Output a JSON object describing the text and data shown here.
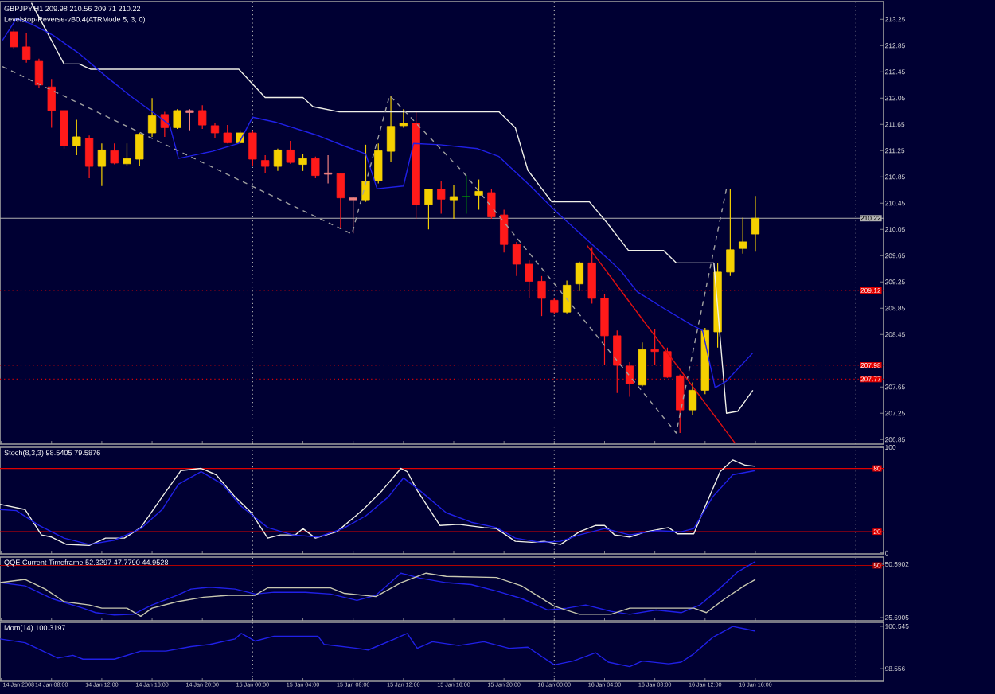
{
  "chart_data": [
    {
      "type": "candlestick",
      "title": "GBPJPY,H1  209.98 210.56 209.71 210.22",
      "subtitle": "Levelstop-Reverse-vB0.4(ATRMode 5, 3, 0)",
      "x": [
        "2008-01-14T05:00",
        "2008-01-14T06:00",
        "2008-01-14T07:00",
        "2008-01-14T08:00",
        "2008-01-14T09:00",
        "2008-01-14T10:00",
        "2008-01-14T11:00",
        "2008-01-14T12:00",
        "2008-01-14T13:00",
        "2008-01-14T14:00",
        "2008-01-14T15:00",
        "2008-01-14T16:00",
        "2008-01-14T17:00",
        "2008-01-14T18:00",
        "2008-01-14T19:00",
        "2008-01-14T20:00",
        "2008-01-14T21:00",
        "2008-01-14T22:00",
        "2008-01-14T23:00",
        "2008-01-15T00:00",
        "2008-01-15T01:00",
        "2008-01-15T02:00",
        "2008-01-15T03:00",
        "2008-01-15T04:00",
        "2008-01-15T05:00",
        "2008-01-15T06:00",
        "2008-01-15T07:00",
        "2008-01-15T08:00",
        "2008-01-15T09:00",
        "2008-01-15T10:00",
        "2008-01-15T11:00",
        "2008-01-15T12:00",
        "2008-01-15T13:00",
        "2008-01-15T14:00",
        "2008-01-15T15:00",
        "2008-01-15T16:00",
        "2008-01-15T17:00",
        "2008-01-15T18:00",
        "2008-01-15T19:00",
        "2008-01-15T20:00",
        "2008-01-15T21:00",
        "2008-01-15T22:00",
        "2008-01-15T23:00",
        "2008-01-16T00:00",
        "2008-01-16T01:00",
        "2008-01-16T02:00",
        "2008-01-16T03:00",
        "2008-01-16T04:00",
        "2008-01-16T05:00",
        "2008-01-16T06:00",
        "2008-01-16T07:00",
        "2008-01-16T08:00",
        "2008-01-16T09:00",
        "2008-01-16T10:00",
        "2008-01-16T11:00",
        "2008-01-16T12:00",
        "2008-01-16T13:00",
        "2008-01-16T14:00",
        "2008-01-16T15:00",
        "2008-01-16T16:00"
      ],
      "ohlc": [
        [
          213.06,
          213.1,
          212.8,
          212.83
        ],
        [
          212.83,
          213.04,
          212.59,
          212.64
        ],
        [
          212.61,
          212.65,
          212.21,
          212.25
        ],
        [
          212.22,
          212.34,
          211.6,
          211.86
        ],
        [
          211.86,
          211.86,
          211.28,
          211.32
        ],
        [
          211.32,
          211.72,
          211.18,
          211.46
        ],
        [
          211.44,
          211.48,
          210.83,
          211.01
        ],
        [
          211.01,
          211.36,
          210.71,
          211.26
        ],
        [
          211.25,
          211.36,
          211.04,
          211.06
        ],
        [
          211.05,
          211.36,
          211.02,
          211.13
        ],
        [
          211.12,
          211.52,
          211.02,
          211.5
        ],
        [
          211.52,
          212.05,
          211.46,
          211.78
        ],
        [
          211.8,
          211.84,
          211.46,
          211.6
        ],
        [
          211.6,
          211.88,
          211.58,
          211.86
        ],
        [
          211.86,
          211.88,
          211.56,
          211.83
        ],
        [
          211.86,
          211.94,
          211.58,
          211.64
        ],
        [
          211.63,
          211.67,
          211.44,
          211.52
        ],
        [
          211.52,
          211.64,
          211.36,
          211.37
        ],
        [
          211.37,
          211.56,
          211.36,
          211.52
        ],
        [
          211.52,
          211.56,
          211.01,
          211.12
        ],
        [
          211.1,
          211.18,
          210.91,
          211.01
        ],
        [
          211.01,
          211.28,
          210.94,
          211.26
        ],
        [
          211.26,
          211.4,
          211.05,
          211.07
        ],
        [
          211.04,
          211.2,
          210.94,
          211.13
        ],
        [
          211.13,
          211.16,
          210.83,
          210.87
        ],
        [
          210.91,
          211.18,
          210.75,
          210.89
        ],
        [
          210.9,
          210.91,
          210.07,
          210.53
        ],
        [
          210.53,
          210.55,
          209.99,
          210.5
        ],
        [
          210.5,
          211.34,
          210.47,
          210.78
        ],
        [
          210.79,
          211.36,
          210.75,
          211.25
        ],
        [
          211.24,
          212.09,
          211.08,
          211.62
        ],
        [
          211.63,
          211.88,
          211.6,
          211.67
        ],
        [
          211.67,
          211.84,
          210.21,
          210.43
        ],
        [
          210.43,
          210.67,
          210.05,
          210.66
        ],
        [
          210.66,
          210.79,
          210.29,
          210.51
        ],
        [
          210.5,
          210.73,
          210.21,
          210.55
        ],
        [
          210.55,
          210.87,
          210.29,
          210.55
        ],
        [
          210.57,
          210.81,
          210.35,
          210.63
        ],
        [
          210.61,
          210.67,
          210.21,
          210.24
        ],
        [
          210.27,
          210.35,
          209.7,
          209.82
        ],
        [
          209.82,
          209.86,
          209.34,
          209.52
        ],
        [
          209.52,
          209.58,
          209.01,
          209.26
        ],
        [
          209.26,
          209.34,
          208.73,
          209.0
        ],
        [
          208.97,
          209.0,
          208.76,
          208.79
        ],
        [
          208.79,
          209.27,
          208.77,
          209.2
        ],
        [
          209.22,
          209.56,
          209.11,
          209.54
        ],
        [
          209.54,
          209.78,
          208.92,
          209.0
        ],
        [
          209.0,
          209.06,
          207.98,
          208.43
        ],
        [
          208.43,
          208.51,
          207.56,
          207.98
        ],
        [
          207.97,
          208.03,
          207.5,
          207.7
        ],
        [
          207.68,
          208.33,
          207.66,
          208.22
        ],
        [
          208.22,
          208.53,
          207.98,
          208.19
        ],
        [
          208.19,
          208.25,
          207.79,
          207.8
        ],
        [
          207.82,
          207.84,
          206.95,
          207.3
        ],
        [
          207.3,
          207.72,
          207.22,
          207.6
        ],
        [
          207.6,
          208.55,
          207.54,
          208.51
        ],
        [
          208.49,
          209.54,
          208.25,
          209.4
        ],
        [
          209.4,
          210.67,
          209.34,
          209.74
        ],
        [
          209.76,
          210.23,
          209.68,
          209.86
        ],
        [
          209.98,
          210.56,
          209.71,
          210.22
        ]
      ],
      "colors": [
        "#ff1a1a",
        "#ff1a1a",
        "#ff1a1a",
        "#ff1a1a",
        "#ff1a1a",
        "#f5d000",
        "#ff1a1a",
        "#f5d000",
        "#ff1a1a",
        "#f5d000",
        "#f5d000",
        "#f5d000",
        "#ff1a1a",
        "#f5d000",
        "#f08080",
        "#ff1a1a",
        "#ff1a1a",
        "#ff1a1a",
        "#f5d000",
        "#ff1a1a",
        "#ff1a1a",
        "#f5d000",
        "#ff1a1a",
        "#f5d000",
        "#ff1a1a",
        "#f08080",
        "#ff1a1a",
        "#f08080",
        "#f5d000",
        "#f5d000",
        "#f5d000",
        "#f5d000",
        "#ff1a1a",
        "#f5d000",
        "#ff1a1a",
        "#f5d000",
        "#00a000",
        "#f5d000",
        "#ff1a1a",
        "#ff1a1a",
        "#ff1a1a",
        "#ff1a1a",
        "#ff1a1a",
        "#ff1a1a",
        "#f5d000",
        "#f5d000",
        "#ff1a1a",
        "#ff1a1a",
        "#ff1a1a",
        "#ff1a1a",
        "#f5d000",
        "#ff1a1a",
        "#ff1a1a",
        "#ff1a1a",
        "#f5d000",
        "#f5d000",
        "#f5d000",
        "#f5d000",
        "#f5d000",
        "#f5d000"
      ],
      "series": [
        {
          "type": "line",
          "color": "#f0f0e8",
          "x": [
            "2008-01-14T06:24",
            "2008-01-14T09:00",
            "2008-01-14T10:12",
            "2008-01-14T11:06",
            "2008-01-14T22:54",
            "2008-01-15T01:00",
            "2008-01-15T04:00",
            "2008-01-15T04:48",
            "2008-01-15T06:54",
            "2008-01-15T19:36",
            "2008-01-15T20:54",
            "2008-01-15T21:54",
            "2008-01-15T23:48",
            "2008-01-16T02:48",
            "2008-01-16T04:12",
            "2008-01-16T05:54",
            "2008-01-16T08:42",
            "2008-01-16T09:42",
            "2008-01-16T12:42",
            "2008-01-16T13:42",
            "2008-01-16T14:36",
            "2008-01-16T15:48"
          ],
          "values": [
            213.5,
            212.57,
            212.57,
            212.49,
            212.49,
            212.06,
            212.06,
            211.92,
            211.84,
            211.84,
            211.6,
            210.95,
            210.47,
            210.47,
            210.15,
            209.73,
            209.73,
            209.54,
            209.54,
            207.25,
            207.28,
            207.6
          ]
        },
        {
          "type": "line",
          "color": "#2020e8",
          "x": [
            "2008-01-14T04:06",
            "2008-01-14T05:12",
            "2008-01-14T06:24",
            "2008-01-14T08:06",
            "2008-01-14T10:12",
            "2008-01-14T12:24",
            "2008-01-14T14:30",
            "2008-01-14T16:36",
            "2008-01-14T17:24",
            "2008-01-14T18:06",
            "2008-01-14T20:48",
            "2008-01-14T22:54",
            "2008-01-15T00:00",
            "2008-01-15T01:54",
            "2008-01-15T05:12",
            "2008-01-15T07:18",
            "2008-01-15T09:00",
            "2008-01-15T09:54",
            "2008-01-15T12:00",
            "2008-01-15T12:48",
            "2008-01-15T14:54",
            "2008-01-15T17:54",
            "2008-01-15T19:36",
            "2008-01-15T22:06",
            "2008-01-16T00:12",
            "2008-01-16T02:48",
            "2008-01-16T05:18",
            "2008-01-16T06:36",
            "2008-01-16T08:42",
            "2008-01-16T10:48",
            "2008-01-16T11:48",
            "2008-01-16T12:48",
            "2008-01-16T13:42",
            "2008-01-16T15:48"
          ],
          "values": [
            212.93,
            213.26,
            213.18,
            213.01,
            212.73,
            212.37,
            212.05,
            211.76,
            211.64,
            211.13,
            211.24,
            211.36,
            211.76,
            211.68,
            211.48,
            211.32,
            211.2,
            210.67,
            210.71,
            211.36,
            211.34,
            211.28,
            211.16,
            210.71,
            210.31,
            209.86,
            209.42,
            209.1,
            208.85,
            208.61,
            208.51,
            207.64,
            207.74,
            208.17
          ]
        },
        {
          "type": "line",
          "color": "#a0a0a0",
          "line_style": "dashed",
          "x": [
            "2008-01-14T04:06",
            "2008-01-15T07:54",
            "2008-01-15T10:54",
            "2008-01-15T16:48",
            "2008-01-16T09:42",
            "2008-01-16T13:42"
          ],
          "values": [
            212.53,
            209.98,
            212.09,
            210.91,
            206.95,
            210.67
          ]
        },
        {
          "type": "line",
          "color": "#e01010",
          "x": [
            "2008-01-16T02:36",
            "2008-01-16T14:24"
          ],
          "values": [
            209.81,
            206.79
          ]
        }
      ],
      "xlim": [
        "2008-01-14T03:54",
        "2008-01-17T02:12"
      ],
      "ylim": [
        206.78,
        213.52
      ],
      "xticks": [
        "2008-01-14T04:00",
        "2008-01-14T08:00",
        "2008-01-14T12:00",
        "2008-01-14T16:00",
        "2008-01-14T20:00",
        "2008-01-15T00:00",
        "2008-01-15T04:00",
        "2008-01-15T08:00",
        "2008-01-15T12:00",
        "2008-01-15T16:00",
        "2008-01-15T20:00",
        "2008-01-16T00:00",
        "2008-01-16T04:00",
        "2008-01-16T08:00",
        "2008-01-16T12:00",
        "2008-01-16T16:00"
      ],
      "yticks": [
        206.85,
        207.25,
        207.65,
        208.45,
        208.85,
        209.25,
        209.65,
        210.05,
        210.45,
        210.85,
        211.25,
        211.65,
        212.05,
        212.45,
        212.85,
        213.25
      ],
      "tick_labels": "y",
      "ref_lines": [
        {
          "axis": "y",
          "value": 210.22,
          "label": "210.22",
          "color": "#b0b0b0"
        },
        {
          "axis": "y",
          "value": 209.12,
          "label": "209.12",
          "color": "#e00000",
          "line_style": "dotted"
        },
        {
          "axis": "y",
          "value": 207.98,
          "label": "207.98",
          "color": "#e00000",
          "line_style": "dotted"
        },
        {
          "axis": "y",
          "value": 207.77,
          "label": "207.77",
          "color": "#e00000",
          "line_style": "dotted"
        },
        {
          "axis": "x",
          "value": "2008-01-15T00:00",
          "color": "#b0b0b0",
          "line_style": "dotted"
        },
        {
          "axis": "x",
          "value": "2008-01-16T00:00",
          "color": "#b0b0b0",
          "line_style": "dotted"
        },
        {
          "axis": "x",
          "value": "2008-01-17T00:00",
          "color": "#b0b0b0",
          "line_style": "dotted"
        }
      ]
    },
    {
      "type": "line",
      "title": "Stoch(8,3,3) 98.5405 79.5876",
      "series": [
        {
          "color": "#f0f0e8",
          "x": [
            "2008-01-14T03:54",
            "2008-01-14T05:54",
            "2008-01-14T07:12",
            "2008-01-14T08:00",
            "2008-01-14T09:12",
            "2008-01-14T11:00",
            "2008-01-14T12:18",
            "2008-01-14T13:48",
            "2008-01-14T15:06",
            "2008-01-14T16:48",
            "2008-01-14T18:18",
            "2008-01-14T19:54",
            "2008-01-14T21:06",
            "2008-01-14T22:36",
            "2008-01-14T23:54",
            "2008-01-15T01:12",
            "2008-01-15T02:12",
            "2008-01-15T03:24",
            "2008-01-15T04:00",
            "2008-01-15T05:00",
            "2008-01-15T06:42",
            "2008-01-15T08:48",
            "2008-01-15T10:18",
            "2008-01-15T11:48",
            "2008-01-15T12:18",
            "2008-01-15T13:06",
            "2008-01-15T14:54",
            "2008-01-15T16:24",
            "2008-01-15T18:24",
            "2008-01-15T19:24",
            "2008-01-15T20:54",
            "2008-01-15T22:12",
            "2008-01-15T23:12",
            "2008-01-16T00:30",
            "2008-01-16T02:00",
            "2008-01-16T03:18",
            "2008-01-16T04:00",
            "2008-01-16T04:48",
            "2008-01-16T06:00",
            "2008-01-16T07:18",
            "2008-01-16T09:06",
            "2008-01-16T09:48",
            "2008-01-16T11:06",
            "2008-01-16T11:54",
            "2008-01-16T13:12",
            "2008-01-16T14:12",
            "2008-01-16T15:12",
            "2008-01-16T16:00"
          ],
          "values": [
            46,
            41,
            17,
            15,
            8,
            7,
            14,
            14,
            24,
            53,
            78,
            80,
            74,
            53,
            38,
            14,
            17,
            17,
            23,
            14,
            20,
            41,
            59,
            80,
            77,
            59,
            26,
            27,
            24,
            23,
            11,
            10,
            11,
            8,
            20,
            26,
            26,
            17,
            15,
            20,
            24,
            18,
            18,
            41,
            77,
            88,
            83,
            82
          ]
        },
        {
          "color": "#2020e8",
          "x": [
            "2008-01-14T03:54",
            "2008-01-14T05:12",
            "2008-01-14T07:00",
            "2008-01-14T09:00",
            "2008-01-14T11:00",
            "2008-01-14T13:00",
            "2008-01-14T15:06",
            "2008-01-14T16:48",
            "2008-01-14T18:06",
            "2008-01-14T19:54",
            "2008-01-14T21:36",
            "2008-01-14T23:06",
            "2008-01-15T01:12",
            "2008-01-15T03:12",
            "2008-01-15T05:12",
            "2008-01-15T07:12",
            "2008-01-15T09:00",
            "2008-01-15T10:48",
            "2008-01-15T12:00",
            "2008-01-15T13:18",
            "2008-01-15T15:24",
            "2008-01-15T17:24",
            "2008-01-15T19:24",
            "2008-01-15T20:54",
            "2008-01-15T22:54",
            "2008-01-16T00:30",
            "2008-01-16T02:00",
            "2008-01-16T04:00",
            "2008-01-16T06:00",
            "2008-01-16T08:06",
            "2008-01-16T10:06",
            "2008-01-16T11:06",
            "2008-01-16T12:36",
            "2008-01-16T14:12",
            "2008-01-16T16:00"
          ],
          "values": [
            41,
            40,
            26,
            14,
            8,
            12,
            23,
            41,
            65,
            77,
            65,
            44,
            24,
            17,
            15,
            23,
            35,
            53,
            71,
            59,
            38,
            29,
            24,
            14,
            10,
            11,
            17,
            23,
            17,
            21,
            20,
            23,
            53,
            74,
            78
          ]
        }
      ],
      "xlim": [
        "2008-01-14T03:54",
        "2008-01-17T02:12"
      ],
      "ylim": [
        -1,
        100
      ],
      "xticks": [
        "2008-01-14T04:00",
        "2008-01-14T08:00",
        "2008-01-14T12:00",
        "2008-01-14T16:00",
        "2008-01-14T20:00",
        "2008-01-15T00:00",
        "2008-01-15T04:00",
        "2008-01-15T08:00",
        "2008-01-15T12:00",
        "2008-01-15T16:00",
        "2008-01-15T20:00",
        "2008-01-16T00:00",
        "2008-01-16T04:00",
        "2008-01-16T08:00",
        "2008-01-16T12:00",
        "2008-01-16T16:00"
      ],
      "yticks": [
        0,
        100
      ],
      "tick_labels": "y",
      "ref_lines": [
        {
          "axis": "y",
          "value": 80,
          "label": "80",
          "color": "#e00000"
        },
        {
          "axis": "y",
          "value": 20,
          "label": "20",
          "color": "#e00000"
        },
        {
          "axis": "x",
          "value": "2008-01-15T00:00",
          "color": "#b0b0b0",
          "line_style": "dotted"
        },
        {
          "axis": "x",
          "value": "2008-01-16T00:00",
          "color": "#b0b0b0",
          "line_style": "dotted"
        },
        {
          "axis": "x",
          "value": "2008-01-17T00:00",
          "color": "#b0b0b0",
          "line_style": "dotted"
        }
      ]
    },
    {
      "type": "line",
      "title": "QQE Current Timeframe 52.3297 47.7790 44.9528",
      "series": [
        {
          "color": "#2020e8",
          "x": [
            "2008-01-14T03:54",
            "2008-01-14T05:54",
            "2008-01-14T08:00",
            "2008-01-14T10:30",
            "2008-01-14T11:30",
            "2008-01-14T13:00",
            "2008-01-14T14:30",
            "2008-01-14T16:00",
            "2008-01-14T18:00",
            "2008-01-14T19:06",
            "2008-01-14T20:36",
            "2008-01-14T22:36",
            "2008-01-15T00:12",
            "2008-01-15T01:42",
            "2008-01-15T04:12",
            "2008-01-15T06:12",
            "2008-01-15T08:18",
            "2008-01-15T09:48",
            "2008-01-15T11:48",
            "2008-01-15T13:18",
            "2008-01-15T15:24",
            "2008-01-15T17:24",
            "2008-01-15T19:24",
            "2008-01-15T21:24",
            "2008-01-15T23:30",
            "2008-01-16T01:00",
            "2008-01-16T02:30",
            "2008-01-16T04:30",
            "2008-01-16T06:00",
            "2008-01-16T08:06",
            "2008-01-16T10:06",
            "2008-01-16T11:36",
            "2008-01-16T13:06",
            "2008-01-16T14:36",
            "2008-01-16T16:00"
          ],
          "values": [
            42.0,
            40.5,
            34.6,
            30.1,
            28.0,
            26.9,
            27.2,
            31.6,
            36.1,
            39.0,
            39.9,
            39.0,
            36.7,
            37.5,
            37.5,
            36.7,
            33.7,
            36.1,
            46.4,
            44.1,
            42.0,
            41.1,
            38.1,
            34.6,
            29.2,
            30.1,
            31.6,
            28.6,
            27.2,
            29.2,
            28.0,
            31.6,
            39.0,
            47.0,
            51.8
          ]
        },
        {
          "color": "#c8c8b0",
          "x": [
            "2008-01-14T03:54",
            "2008-01-14T05:54",
            "2008-01-14T07:30",
            "2008-01-14T09:00",
            "2008-01-14T11:00",
            "2008-01-14T12:00",
            "2008-01-14T14:00",
            "2008-01-14T15:06",
            "2008-01-14T16:00",
            "2008-01-14T18:00",
            "2008-01-14T20:06",
            "2008-01-14T22:06",
            "2008-01-15T00:12",
            "2008-01-15T01:12",
            "2008-01-15T06:12",
            "2008-01-15T07:18",
            "2008-01-15T09:48",
            "2008-01-15T11:48",
            "2008-01-15T13:48",
            "2008-01-15T15:24",
            "2008-01-15T19:24",
            "2008-01-15T21:24",
            "2008-01-16T00:00",
            "2008-01-16T02:00",
            "2008-01-16T04:30",
            "2008-01-16T06:00",
            "2008-01-16T11:06",
            "2008-01-16T12:06",
            "2008-01-16T13:36",
            "2008-01-16T15:06",
            "2008-01-16T16:00"
          ],
          "values": [
            42.0,
            43.5,
            39.0,
            33.1,
            31.6,
            30.1,
            30.1,
            26.3,
            30.1,
            33.1,
            35.2,
            36.1,
            36.1,
            39.6,
            39.6,
            37.0,
            35.5,
            42.0,
            46.4,
            44.9,
            44.4,
            40.5,
            31.0,
            27.2,
            27.2,
            30.1,
            30.1,
            28.0,
            34.6,
            40.5,
            43.5
          ]
        }
      ],
      "xlim": [
        "2008-01-14T03:54",
        "2008-01-17T02:12"
      ],
      "ylim": [
        24.2,
        53.9
      ],
      "xticks": [
        "2008-01-14T04:00",
        "2008-01-14T08:00",
        "2008-01-14T12:00",
        "2008-01-14T16:00",
        "2008-01-14T20:00",
        "2008-01-15T00:00",
        "2008-01-15T04:00",
        "2008-01-15T08:00",
        "2008-01-15T12:00",
        "2008-01-15T16:00",
        "2008-01-15T20:00",
        "2008-01-16T00:00",
        "2008-01-16T04:00",
        "2008-01-16T08:00",
        "2008-01-16T12:00",
        "2008-01-16T16:00"
      ],
      "yticks": [
        25.6905,
        50.5902
      ],
      "tick_labels": "y",
      "ref_lines": [
        {
          "axis": "y",
          "value": 50,
          "label": "50",
          "color": "#b00000"
        },
        {
          "axis": "x",
          "value": "2008-01-15T00:00",
          "color": "#b0b0b0",
          "line_style": "dotted"
        },
        {
          "axis": "x",
          "value": "2008-01-16T00:00",
          "color": "#b0b0b0",
          "line_style": "dotted"
        },
        {
          "axis": "x",
          "value": "2008-01-17T00:00",
          "color": "#b0b0b0",
          "line_style": "dotted"
        }
      ]
    },
    {
      "type": "line",
      "title": "Mom(14) 100.3197",
      "series": [
        {
          "color": "#2020e8",
          "x": [
            "2008-01-14T03:54",
            "2008-01-14T05:54",
            "2008-01-14T08:30",
            "2008-01-14T09:42",
            "2008-01-14T10:30",
            "2008-01-14T13:00",
            "2008-01-14T15:06",
            "2008-01-14T17:06",
            "2008-01-14T19:06",
            "2008-01-14T20:36",
            "2008-01-14T22:36",
            "2008-01-14T23:06",
            "2008-01-15T00:12",
            "2008-01-15T01:42",
            "2008-01-15T05:12",
            "2008-01-15T05:42",
            "2008-01-15T08:18",
            "2008-01-15T09:12",
            "2008-01-15T11:18",
            "2008-01-15T12:18",
            "2008-01-15T13:06",
            "2008-01-15T14:18",
            "2008-01-15T16:24",
            "2008-01-15T18:24",
            "2008-01-15T20:24",
            "2008-01-15T21:54",
            "2008-01-16T00:00",
            "2008-01-16T01:30",
            "2008-01-16T03:18",
            "2008-01-16T04:18",
            "2008-01-16T06:00",
            "2008-01-16T07:00",
            "2008-01-16T09:06",
            "2008-01-16T10:06",
            "2008-01-16T11:06",
            "2008-01-16T12:36",
            "2008-01-16T14:12",
            "2008-01-16T15:12",
            "2008-01-16T16:00"
          ],
          "values": [
            99.95,
            99.77,
            99.05,
            99.18,
            99.0,
            99.0,
            99.38,
            99.38,
            99.59,
            99.69,
            99.95,
            100.21,
            99.85,
            100.08,
            100.08,
            99.69,
            99.51,
            99.43,
            99.95,
            100.21,
            99.51,
            99.82,
            99.64,
            99.82,
            99.51,
            99.56,
            98.73,
            98.91,
            99.3,
            98.86,
            98.65,
            98.91,
            98.78,
            98.86,
            99.25,
            100.02,
            100.54,
            100.42,
            100.32
          ]
        }
      ],
      "xlim": [
        "2008-01-14T03:54",
        "2008-01-17T02:12"
      ],
      "ylim": [
        97.96,
        100.73
      ],
      "xticks": [
        {
          "value": "2008-01-14T04:00",
          "label": "14 Jan 2008"
        },
        {
          "value": "2008-01-14T08:00",
          "label": "14 Jan 08:00"
        },
        {
          "value": "2008-01-14T12:00",
          "label": "14 Jan 12:00"
        },
        {
          "value": "2008-01-14T16:00",
          "label": "14 Jan 16:00"
        },
        {
          "value": "2008-01-14T20:00",
          "label": "14 Jan 20:00"
        },
        {
          "value": "2008-01-15T00:00",
          "label": "15 Jan 00:00"
        },
        {
          "value": "2008-01-15T04:00",
          "label": "15 Jan 04:00"
        },
        {
          "value": "2008-01-15T08:00",
          "label": "15 Jan 08:00"
        },
        {
          "value": "2008-01-15T12:00",
          "label": "15 Jan 12:00"
        },
        {
          "value": "2008-01-15T16:00",
          "label": "15 Jan 16:00"
        },
        {
          "value": "2008-01-15T20:00",
          "label": "15 Jan 20:00"
        },
        {
          "value": "2008-01-16T00:00",
          "label": "16 Jan 00:00"
        },
        {
          "value": "2008-01-16T04:00",
          "label": "16 Jan 04:00"
        },
        {
          "value": "2008-01-16T08:00",
          "label": "16 Jan 08:00"
        },
        {
          "value": "2008-01-16T12:00",
          "label": "16 Jan 12:00"
        },
        {
          "value": "2008-01-16T16:00",
          "label": "16 Jan 16:00"
        }
      ],
      "yticks": [
        98.556,
        100.545
      ],
      "ref_lines": [
        {
          "axis": "x",
          "value": "2008-01-15T00:00",
          "color": "#b0b0b0",
          "line_style": "dotted"
        },
        {
          "axis": "x",
          "value": "2008-01-16T00:00",
          "color": "#b0b0b0",
          "line_style": "dotted"
        },
        {
          "axis": "x",
          "value": "2008-01-17T00:00",
          "color": "#b0b0b0",
          "line_style": "dotted"
        }
      ]
    }
  ]
}
